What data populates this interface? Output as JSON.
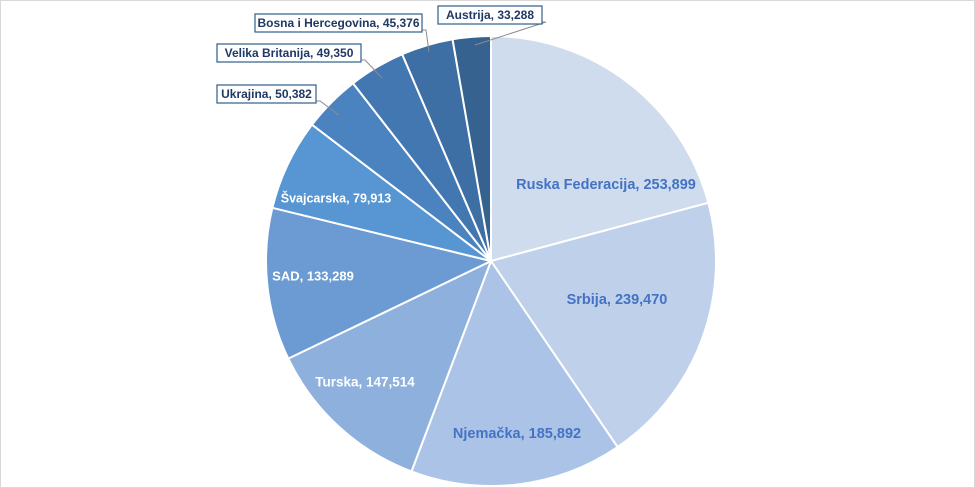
{
  "chart_data": {
    "type": "pie",
    "title": "",
    "slices": [
      {
        "label": "Ruska Federacija",
        "value": 253899,
        "value_text": "253,899",
        "color": "#cfdcee",
        "text_color": "#4472c4"
      },
      {
        "label": "Srbija",
        "value": 239470,
        "value_text": "239,470",
        "color": "#bfd0ea",
        "text_color": "#4472c4"
      },
      {
        "label": "Njemačka",
        "value": 185892,
        "value_text": "185,892",
        "color": "#abc3e6",
        "text_color": "#4472c4"
      },
      {
        "label": "Turska",
        "value": 147514,
        "value_text": "147,514",
        "color": "#8eb0dc",
        "text_color": "#ffffff"
      },
      {
        "label": "SAD",
        "value": 133289,
        "value_text": "133,289",
        "color": "#6c9bd3",
        "text_color": "#ffffff"
      },
      {
        "label": "Švajcarska",
        "value": 79913,
        "value_text": "79,913",
        "color": "#5796d2",
        "text_color": "#ffffff"
      },
      {
        "label": "Ukrajina",
        "value": 50382,
        "value_text": "50,382",
        "color": "#4a83c0",
        "text_color": "#1f3864"
      },
      {
        "label": "Velika Britanija",
        "value": 49350,
        "value_text": "49,350",
        "color": "#4377b2",
        "text_color": "#1f3864"
      },
      {
        "label": "Bosna i Hercegovina",
        "value": 45376,
        "value_text": "45,376",
        "color": "#3d6ea4",
        "text_color": "#1f3864"
      },
      {
        "label": "Austrija",
        "value": 33288,
        "value_text": "33,288",
        "color": "#35628f",
        "text_color": "#1f3864"
      }
    ]
  }
}
